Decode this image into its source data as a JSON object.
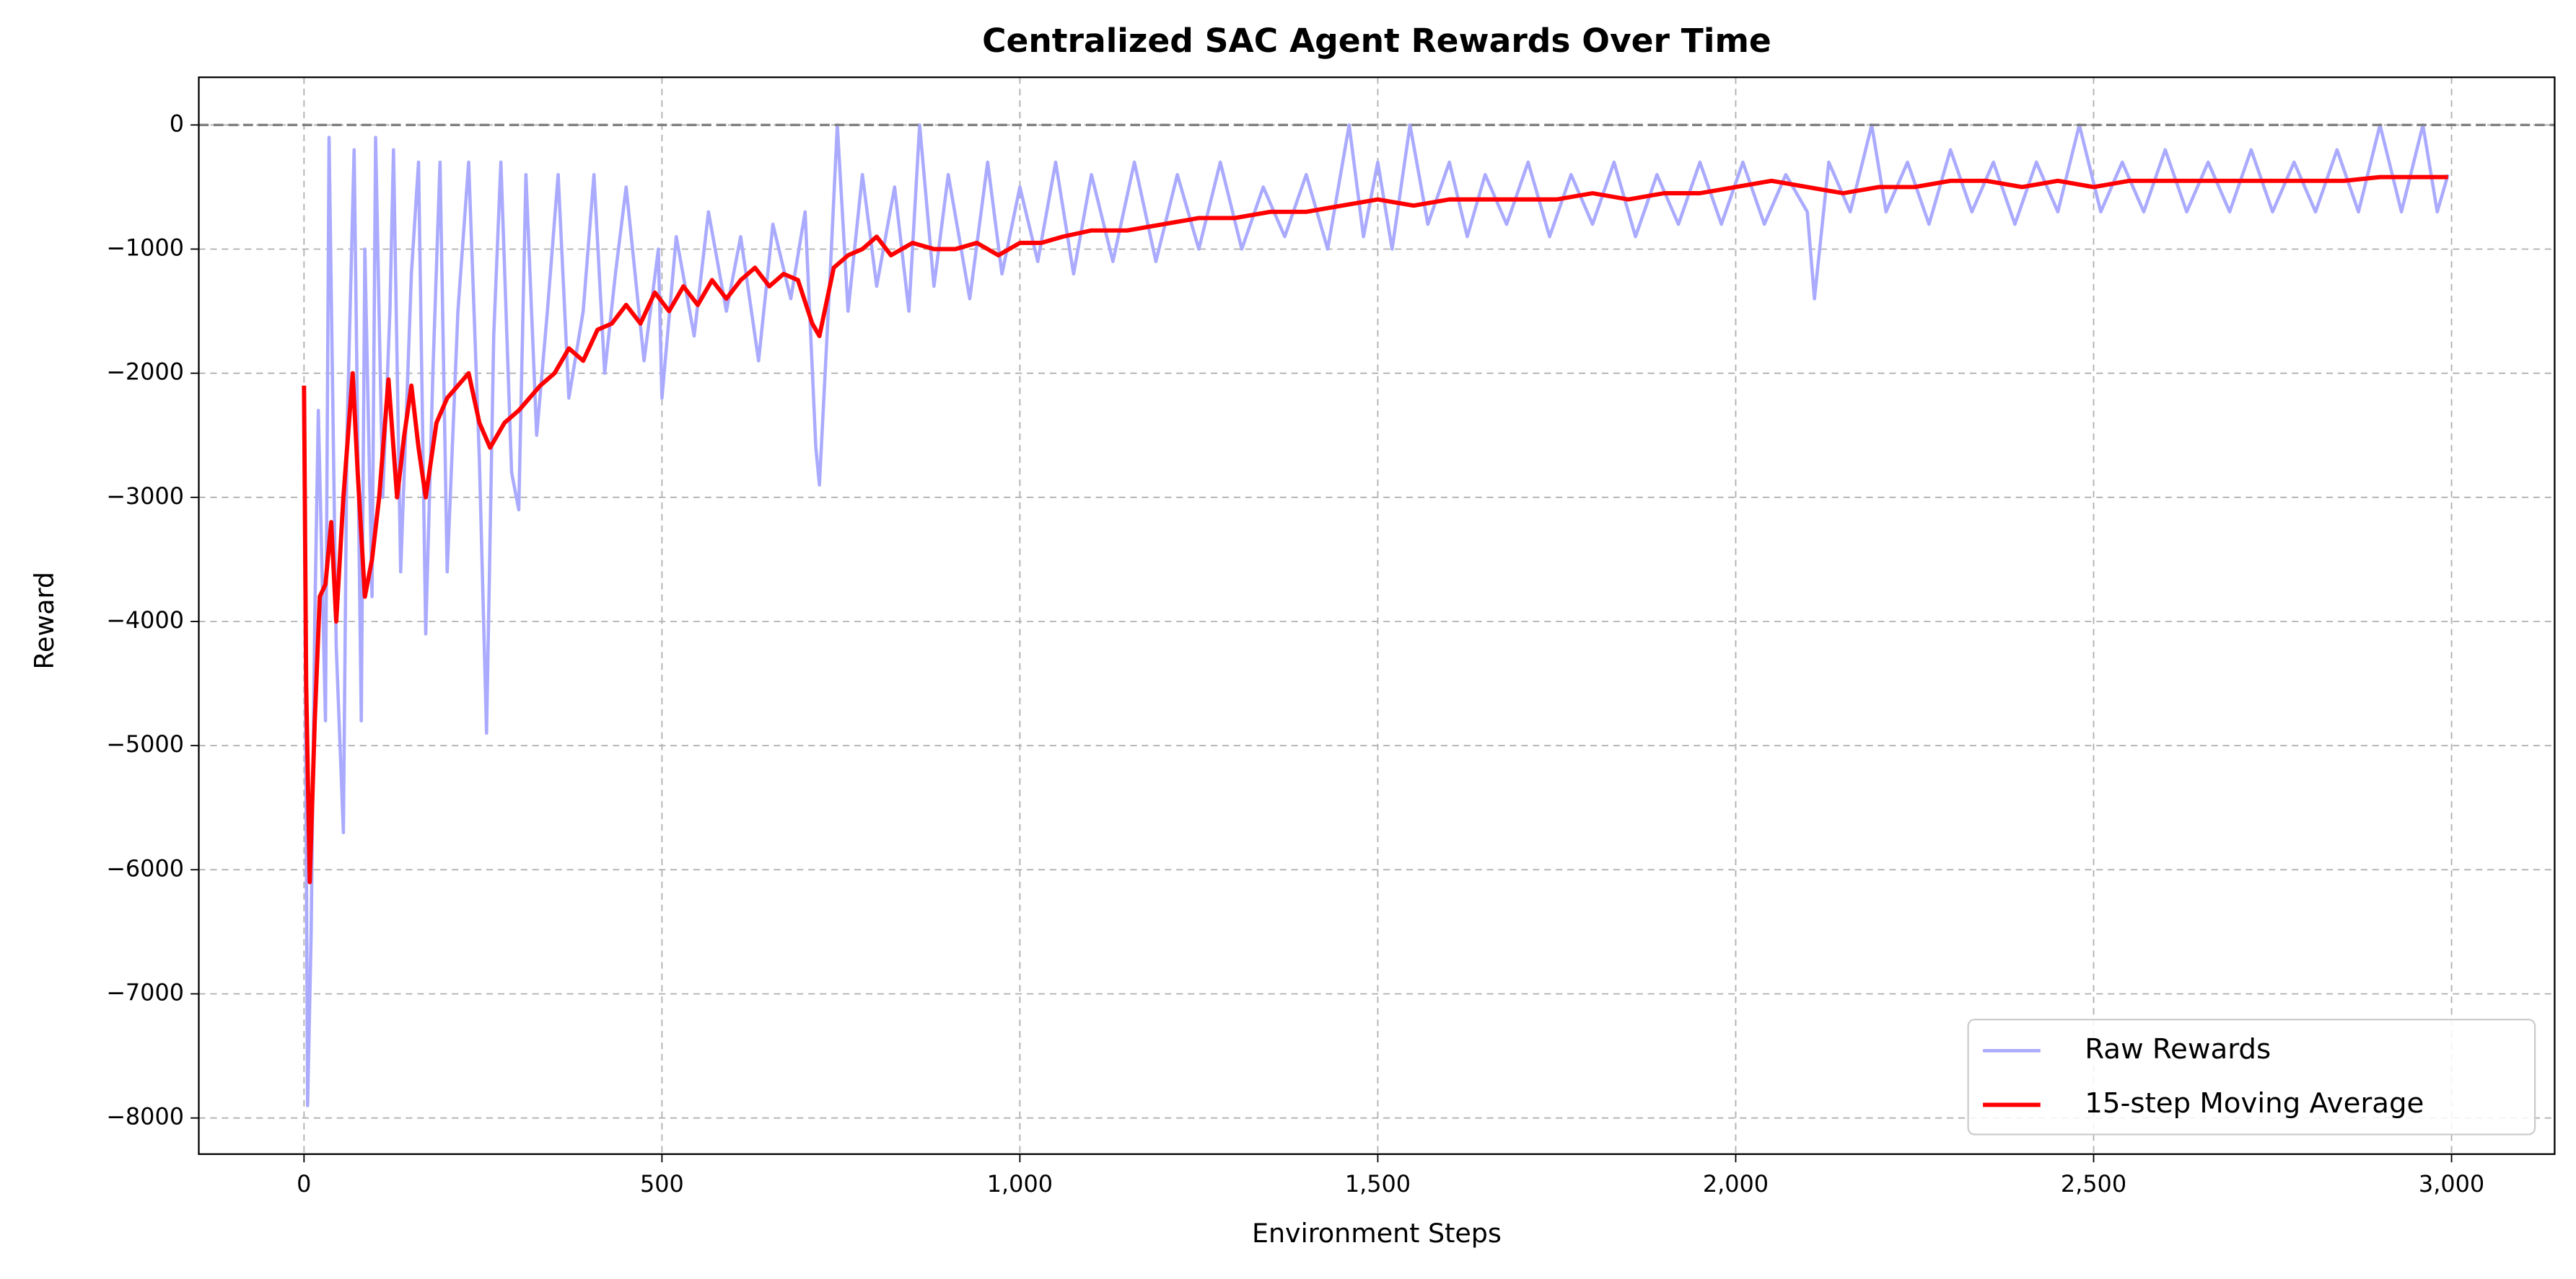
{
  "chart_data": {
    "type": "line",
    "title": "Centralized SAC Agent Rewards Over Time",
    "x_label": "Environment Steps",
    "y_label": "Reward",
    "xlim": [
      -147,
      3144
    ],
    "ylim": [
      -8291,
      384
    ],
    "xticks": [
      0,
      500,
      {
        "value": 1000,
        "label": "1,000"
      },
      {
        "value": 1500,
        "label": "1,500"
      },
      {
        "value": 2000,
        "label": "2,000"
      },
      {
        "value": 2500,
        "label": "2,500"
      },
      {
        "value": 3000,
        "label": "3,000"
      }
    ],
    "yticks": [
      0,
      {
        "value": -1000,
        "label": "−1000"
      },
      {
        "value": -2000,
        "label": "−2000"
      },
      {
        "value": -3000,
        "label": "−3000"
      },
      {
        "value": -4000,
        "label": "−4000"
      },
      {
        "value": -5000,
        "label": "−5000"
      },
      {
        "value": -6000,
        "label": "−6000"
      },
      {
        "value": -7000,
        "label": "−7000"
      },
      {
        "value": -8000,
        "label": "−8000"
      }
    ],
    "grid": true,
    "hline": 0,
    "legend": "lower right",
    "series": [
      {
        "name": "Raw Rewards",
        "color": "#aaaaff",
        "x": [
          0,
          5,
          10,
          15,
          20,
          30,
          35,
          45,
          55,
          60,
          70,
          80,
          85,
          95,
          100,
          110,
          120,
          125,
          135,
          150,
          160,
          170,
          180,
          190,
          200,
          215,
          230,
          245,
          255,
          265,
          275,
          290,
          300,
          310,
          325,
          340,
          355,
          370,
          390,
          405,
          420,
          435,
          450,
          475,
          495,
          500,
          520,
          545,
          565,
          590,
          610,
          635,
          655,
          680,
          700,
          715,
          720,
          735,
          745,
          760,
          780,
          800,
          825,
          845,
          860,
          880,
          900,
          930,
          955,
          975,
          1000,
          1025,
          1050,
          1075,
          1100,
          1130,
          1160,
          1190,
          1220,
          1250,
          1280,
          1310,
          1340,
          1370,
          1400,
          1430,
          1460,
          1480,
          1500,
          1520,
          1545,
          1570,
          1600,
          1625,
          1650,
          1680,
          1710,
          1740,
          1770,
          1800,
          1830,
          1860,
          1890,
          1920,
          1950,
          1980,
          2010,
          2040,
          2070,
          2100,
          2110,
          2130,
          2160,
          2190,
          2210,
          2240,
          2270,
          2300,
          2330,
          2360,
          2390,
          2420,
          2450,
          2480,
          2510,
          2540,
          2570,
          2600,
          2630,
          2660,
          2690,
          2720,
          2750,
          2780,
          2810,
          2840,
          2870,
          2900,
          2930,
          2960,
          2980,
          2995
        ],
        "values": [
          -2100,
          -7900,
          -6500,
          -4000,
          -2300,
          -4800,
          -100,
          -4200,
          -5700,
          -2500,
          -200,
          -4800,
          -1000,
          -3800,
          -100,
          -3000,
          -1500,
          -200,
          -3600,
          -1200,
          -300,
          -4100,
          -2000,
          -300,
          -3600,
          -1500,
          -300,
          -2700,
          -4900,
          -1700,
          -300,
          -2800,
          -3100,
          -400,
          -2500,
          -1500,
          -400,
          -2200,
          -1500,
          -400,
          -2000,
          -1200,
          -500,
          -1900,
          -1000,
          -2200,
          -900,
          -1700,
          -700,
          -1500,
          -900,
          -1900,
          -800,
          -1400,
          -700,
          -2600,
          -2900,
          -1200,
          0,
          -1500,
          -400,
          -1300,
          -500,
          -1500,
          0,
          -1300,
          -400,
          -1400,
          -300,
          -1200,
          -500,
          -1100,
          -300,
          -1200,
          -400,
          -1100,
          -300,
          -1100,
          -400,
          -1000,
          -300,
          -1000,
          -500,
          -900,
          -400,
          -1000,
          0,
          -900,
          -300,
          -1000,
          0,
          -800,
          -300,
          -900,
          -400,
          -800,
          -300,
          -900,
          -400,
          -800,
          -300,
          -900,
          -400,
          -800,
          -300,
          -800,
          -300,
          -800,
          -400,
          -700,
          -1400,
          -300,
          -700,
          0,
          -700,
          -300,
          -800,
          -200,
          -700,
          -300,
          -800,
          -300,
          -700,
          0,
          -700,
          -300,
          -700,
          -200,
          -700,
          -300,
          -700,
          -200,
          -700,
          -300,
          -700,
          -200,
          -700,
          0,
          -700,
          0,
          -700,
          -400
        ]
      },
      {
        "name": "15-step Moving Average",
        "color": "#ff0000",
        "x": [
          0,
          3,
          8,
          15,
          22,
          30,
          38,
          45,
          55,
          68,
          75,
          85,
          95,
          105,
          118,
          130,
          140,
          150,
          160,
          170,
          185,
          200,
          215,
          230,
          245,
          260,
          280,
          300,
          330,
          350,
          370,
          390,
          410,
          430,
          450,
          470,
          490,
          510,
          530,
          550,
          570,
          590,
          610,
          630,
          650,
          670,
          690,
          710,
          720,
          740,
          760,
          780,
          800,
          820,
          850,
          880,
          910,
          940,
          970,
          1000,
          1030,
          1060,
          1100,
          1150,
          1200,
          1250,
          1300,
          1350,
          1400,
          1450,
          1500,
          1550,
          1600,
          1650,
          1700,
          1750,
          1800,
          1850,
          1900,
          1950,
          2000,
          2050,
          2100,
          2150,
          2200,
          2250,
          2300,
          2350,
          2400,
          2450,
          2500,
          2550,
          2600,
          2650,
          2700,
          2750,
          2800,
          2850,
          2900,
          2950,
          2995
        ],
        "values": [
          -2100,
          -4500,
          -6100,
          -4800,
          -3800,
          -3700,
          -3200,
          -4000,
          -3000,
          -2000,
          -2800,
          -3800,
          -3500,
          -3000,
          -2050,
          -3000,
          -2500,
          -2100,
          -2600,
          -3000,
          -2400,
          -2200,
          -2100,
          -2000,
          -2400,
          -2600,
          -2400,
          -2300,
          -2100,
          -2000,
          -1800,
          -1900,
          -1650,
          -1600,
          -1450,
          -1600,
          -1350,
          -1500,
          -1300,
          -1450,
          -1250,
          -1400,
          -1250,
          -1150,
          -1300,
          -1200,
          -1250,
          -1600,
          -1700,
          -1150,
          -1050,
          -1000,
          -900,
          -1050,
          -950,
          -1000,
          -1000,
          -950,
          -1050,
          -950,
          -950,
          -900,
          -850,
          -850,
          -800,
          -750,
          -750,
          -700,
          -700,
          -650,
          -600,
          -650,
          -600,
          -600,
          -600,
          -600,
          -550,
          -600,
          -550,
          -550,
          -500,
          -450,
          -500,
          -550,
          -500,
          -500,
          -450,
          -450,
          -500,
          -450,
          -500,
          -450,
          -450,
          -450,
          -450,
          -450,
          -450,
          -450,
          -420,
          -420,
          -420
        ]
      }
    ]
  }
}
